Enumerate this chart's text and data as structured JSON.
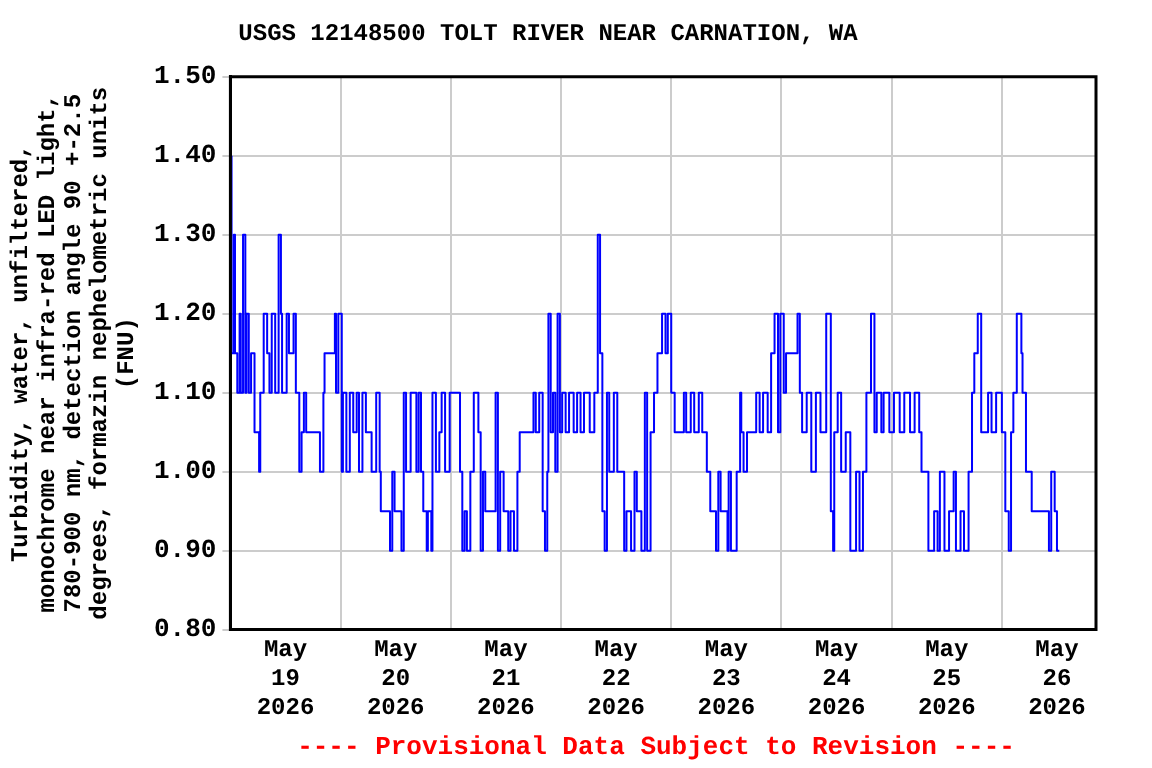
{
  "chart_data": {
    "type": "step",
    "title": "USGS 12148500 TOLT RIVER NEAR CARNATION, WA",
    "ylabel": "Turbidity, water, unfiltered,\nmonochrome near infra-red LED light,\n780-900 nm, detection angle 90 +-2.5\ndegrees, formazin nephelometric units\n(FNU)",
    "annotations": [
      "---- Provisional Data Subject to Revision ----"
    ],
    "xlim": [
      "2026-05-19T00:00",
      "2026-05-26T20:30"
    ],
    "xticks": [
      {
        "value": "2026-05-19T12:00",
        "label": "May\n19\n2026"
      },
      {
        "value": "2026-05-20T00:00",
        "label": null
      },
      {
        "value": "2026-05-20T12:00",
        "label": "May\n20\n2026"
      },
      {
        "value": "2026-05-21T00:00",
        "label": null
      },
      {
        "value": "2026-05-21T12:00",
        "label": "May\n21\n2026"
      },
      {
        "value": "2026-05-22T00:00",
        "label": null
      },
      {
        "value": "2026-05-22T12:00",
        "label": "May\n22\n2026"
      },
      {
        "value": "2026-05-23T00:00",
        "label": null
      },
      {
        "value": "2026-05-23T12:00",
        "label": "May\n23\n2026"
      },
      {
        "value": "2026-05-24T00:00",
        "label": null
      },
      {
        "value": "2026-05-24T12:00",
        "label": "May\n24\n2026"
      },
      {
        "value": "2026-05-25T00:00",
        "label": null
      },
      {
        "value": "2026-05-25T12:00",
        "label": "May\n25\n2026"
      },
      {
        "value": "2026-05-26T00:00",
        "label": null
      },
      {
        "value": "2026-05-26T12:00",
        "label": "May\n26\n2026"
      }
    ],
    "ylim": [
      0.8,
      1.5
    ],
    "yticks": [
      {
        "value": 0.8,
        "label": "0.80"
      },
      {
        "value": 0.9,
        "label": "0.90"
      },
      {
        "value": 1.0,
        "label": "1.00"
      },
      {
        "value": 1.1,
        "label": "1.10"
      },
      {
        "value": 1.2,
        "label": "1.20"
      },
      {
        "value": 1.3,
        "label": "1.30"
      },
      {
        "value": 1.4,
        "label": "1.40"
      },
      {
        "value": 1.5,
        "label": "1.50"
      }
    ],
    "grid": true,
    "series": [
      {
        "color": "#0000ff",
        "x": [
          "2026-05-19T00:15",
          "2026-05-19T00:45",
          "2026-05-19T01:00",
          "2026-05-19T01:30",
          "2026-05-19T02:00",
          "2026-05-19T02:15",
          "2026-05-19T02:45",
          "2026-05-19T03:15",
          "2026-05-19T03:30",
          "2026-05-19T04:00",
          "2026-05-19T04:30",
          "2026-05-19T05:15",
          "2026-05-19T06:15",
          "2026-05-19T06:30",
          "2026-05-19T07:15",
          "2026-05-19T08:00",
          "2026-05-19T08:30",
          "2026-05-19T09:00",
          "2026-05-19T09:45",
          "2026-05-19T10:30",
          "2026-05-19T11:00",
          "2026-05-19T11:15",
          "2026-05-19T12:15",
          "2026-05-19T12:45",
          "2026-05-19T13:45",
          "2026-05-19T14:15",
          "2026-05-19T15:00",
          "2026-05-19T15:30",
          "2026-05-19T16:00",
          "2026-05-19T16:30",
          "2026-05-19T19:30",
          "2026-05-19T20:15",
          "2026-05-19T20:30",
          "2026-05-19T22:45",
          "2026-05-19T23:00",
          "2026-05-19T23:30",
          "2026-05-20T00:15",
          "2026-05-20T00:30",
          "2026-05-20T01:15",
          "2026-05-20T02:00",
          "2026-05-20T02:45",
          "2026-05-20T03:30",
          "2026-05-20T04:00",
          "2026-05-20T04:45",
          "2026-05-20T05:30",
          "2026-05-20T06:45",
          "2026-05-20T07:45",
          "2026-05-20T08:30",
          "2026-05-20T08:45",
          "2026-05-20T10:45",
          "2026-05-20T11:15",
          "2026-05-20T11:45",
          "2026-05-20T13:15",
          "2026-05-20T13:45",
          "2026-05-20T14:15",
          "2026-05-20T15:15",
          "2026-05-20T16:30",
          "2026-05-20T17:00",
          "2026-05-20T17:30",
          "2026-05-20T18:00",
          "2026-05-20T18:45",
          "2026-05-20T19:00",
          "2026-05-20T19:45",
          "2026-05-20T20:00",
          "2026-05-20T20:45",
          "2026-05-20T21:30",
          "2026-05-20T22:00",
          "2026-05-20T22:45",
          "2026-05-20T23:45",
          "2026-05-21T02:00",
          "2026-05-21T02:30",
          "2026-05-21T03:00",
          "2026-05-21T03:30",
          "2026-05-21T04:15",
          "2026-05-21T05:00",
          "2026-05-21T06:00",
          "2026-05-21T06:30",
          "2026-05-21T07:00",
          "2026-05-21T07:30",
          "2026-05-21T09:45",
          "2026-05-21T10:15",
          "2026-05-21T10:45",
          "2026-05-21T11:30",
          "2026-05-21T12:30",
          "2026-05-21T13:00",
          "2026-05-21T13:45",
          "2026-05-21T14:30",
          "2026-05-21T15:00",
          "2026-05-21T18:00",
          "2026-05-21T18:30",
          "2026-05-21T19:15",
          "2026-05-21T20:00",
          "2026-05-21T20:30",
          "2026-05-21T21:00",
          "2026-05-21T21:15",
          "2026-05-21T21:45",
          "2026-05-21T22:15",
          "2026-05-21T22:45",
          "2026-05-21T23:15",
          "2026-05-21T23:45",
          "2026-05-22T00:15",
          "2026-05-22T01:00",
          "2026-05-22T01:45",
          "2026-05-22T02:45",
          "2026-05-22T03:30",
          "2026-05-22T04:15",
          "2026-05-22T05:00",
          "2026-05-22T06:15",
          "2026-05-22T07:15",
          "2026-05-22T08:00",
          "2026-05-22T08:30",
          "2026-05-22T09:00",
          "2026-05-22T09:30",
          "2026-05-22T10:00",
          "2026-05-22T10:30",
          "2026-05-22T11:30",
          "2026-05-22T12:15",
          "2026-05-22T13:45",
          "2026-05-22T14:15",
          "2026-05-22T15:15",
          "2026-05-22T16:00",
          "2026-05-22T16:30",
          "2026-05-22T17:30",
          "2026-05-22T18:15",
          "2026-05-22T18:45",
          "2026-05-22T19:30",
          "2026-05-22T20:15",
          "2026-05-22T21:00",
          "2026-05-22T22:00",
          "2026-05-22T22:45",
          "2026-05-22T23:15",
          "2026-05-23T00:00",
          "2026-05-23T00:45",
          "2026-05-23T02:45",
          "2026-05-23T03:15",
          "2026-05-23T04:15",
          "2026-05-23T05:00",
          "2026-05-23T06:00",
          "2026-05-23T06:45",
          "2026-05-23T07:45",
          "2026-05-23T08:30",
          "2026-05-23T09:45",
          "2026-05-23T10:15",
          "2026-05-23T10:45",
          "2026-05-23T12:15",
          "2026-05-23T12:30",
          "2026-05-23T13:00",
          "2026-05-23T14:15",
          "2026-05-23T15:00",
          "2026-05-23T15:15",
          "2026-05-23T15:45",
          "2026-05-23T16:30",
          "2026-05-23T18:30",
          "2026-05-23T19:15",
          "2026-05-23T20:00",
          "2026-05-23T21:00",
          "2026-05-23T21:45",
          "2026-05-23T22:30",
          "2026-05-23T23:15",
          "2026-05-23T23:45",
          "2026-05-24T00:30",
          "2026-05-24T01:00",
          "2026-05-24T03:30",
          "2026-05-24T04:00",
          "2026-05-24T04:30",
          "2026-05-24T05:30",
          "2026-05-24T06:30",
          "2026-05-24T07:30",
          "2026-05-24T08:30",
          "2026-05-24T09:45",
          "2026-05-24T10:45",
          "2026-05-24T11:15",
          "2026-05-24T11:30",
          "2026-05-24T12:15",
          "2026-05-24T13:00",
          "2026-05-24T14:00",
          "2026-05-24T15:00",
          "2026-05-24T16:15",
          "2026-05-24T17:00",
          "2026-05-24T17:45",
          "2026-05-24T18:30",
          "2026-05-24T19:30",
          "2026-05-24T20:15",
          "2026-05-24T20:45",
          "2026-05-24T21:45",
          "2026-05-24T22:15",
          "2026-05-24T23:30",
          "2026-05-25T00:30",
          "2026-05-25T01:45",
          "2026-05-25T02:45",
          "2026-05-25T04:00",
          "2026-05-25T05:00",
          "2026-05-25T06:00",
          "2026-05-25T06:30",
          "2026-05-25T08:00",
          "2026-05-25T09:15",
          "2026-05-25T10:00",
          "2026-05-25T10:30",
          "2026-05-25T11:30",
          "2026-05-25T12:30",
          "2026-05-25T13:30",
          "2026-05-25T14:00",
          "2026-05-25T15:00",
          "2026-05-25T15:45",
          "2026-05-25T16:45",
          "2026-05-25T17:30",
          "2026-05-25T18:00",
          "2026-05-25T18:45",
          "2026-05-25T19:30",
          "2026-05-25T21:00",
          "2026-05-25T21:45",
          "2026-05-25T22:45",
          "2026-05-26T00:00",
          "2026-05-26T00:45",
          "2026-05-26T01:30",
          "2026-05-26T02:00",
          "2026-05-26T02:30",
          "2026-05-26T03:15",
          "2026-05-26T04:15",
          "2026-05-26T04:30",
          "2026-05-26T05:15",
          "2026-05-26T06:30",
          "2026-05-26T10:15",
          "2026-05-26T10:45",
          "2026-05-26T11:30",
          "2026-05-26T12:00",
          "2026-05-26T12:30"
        ],
        "values": [
          1.4,
          1.15,
          1.3,
          1.15,
          1.1,
          1.2,
          1.1,
          1.3,
          1.1,
          1.2,
          1.1,
          1.15,
          1.05,
          1.0,
          1.1,
          1.2,
          1.15,
          1.1,
          1.2,
          1.1,
          1.3,
          1.2,
          1.1,
          1.2,
          1.15,
          1.2,
          1.1,
          1.0,
          1.05,
          1.1,
          1.05,
          1.0,
          1.1,
          1.15,
          1.2,
          1.1,
          1.2,
          1.0,
          1.1,
          1.0,
          1.1,
          1.05,
          1.1,
          1.0,
          1.1,
          1.05,
          1.0,
          1.1,
          1.0,
          0.95,
          0.9,
          1.0,
          0.95,
          0.9,
          1.1,
          1.0,
          1.1,
          1.0,
          1.1,
          1.0,
          0.95,
          0.9,
          0.95,
          0.9,
          1.1,
          1.0,
          1.05,
          1.1,
          1.0,
          1.1,
          1.0,
          0.9,
          0.95,
          0.9,
          1.0,
          1.1,
          1.05,
          0.9,
          1.0,
          0.95,
          1.1,
          0.9,
          1.0,
          0.95,
          0.9,
          0.95,
          0.9,
          1.0,
          1.05,
          1.1,
          1.05,
          1.1,
          0.95,
          0.9,
          1.0,
          1.2,
          1.05,
          1.1,
          1.0,
          1.2,
          1.05,
          1.1,
          1.05,
          1.1,
          1.05,
          1.1,
          1.05,
          1.1,
          1.05,
          1.1,
          1.3,
          1.15,
          0.95,
          0.9,
          1.1,
          1.0,
          1.1,
          1.0,
          0.9,
          0.95,
          0.9,
          1.0,
          0.95,
          0.9,
          1.1,
          0.9,
          1.05,
          1.1,
          1.15,
          1.2,
          1.15,
          1.2,
          1.1,
          1.05,
          1.1,
          1.05,
          1.1,
          1.05,
          1.1,
          1.05,
          1.0,
          0.95,
          0.9,
          1.0,
          0.95,
          0.9,
          1.0,
          0.9,
          1.0,
          1.1,
          1.05,
          1.0,
          1.05,
          1.1,
          1.05,
          1.1,
          1.05,
          1.15,
          1.2,
          1.05,
          1.2,
          1.1,
          1.15,
          1.2,
          1.1,
          1.05,
          1.1,
          1.0,
          1.1,
          1.05,
          1.2,
          0.95,
          0.9,
          1.05,
          1.1,
          1.0,
          1.05,
          0.9,
          1.0,
          0.9,
          1.0,
          1.1,
          1.2,
          1.05,
          1.1,
          1.05,
          1.1,
          1.05,
          1.1,
          1.05,
          1.1,
          1.05,
          1.1,
          1.05,
          1.0,
          0.9,
          0.95,
          0.9,
          1.0,
          0.9,
          0.95,
          1.0,
          0.9,
          0.95,
          0.9,
          1.0,
          1.1,
          1.15,
          1.2,
          1.05,
          1.1,
          1.05,
          1.1,
          1.05,
          0.95,
          0.9,
          1.05,
          1.1,
          1.2,
          1.15,
          1.1,
          1.0,
          0.95,
          0.9,
          1.0,
          0.95,
          0.9
        ]
      }
    ]
  }
}
